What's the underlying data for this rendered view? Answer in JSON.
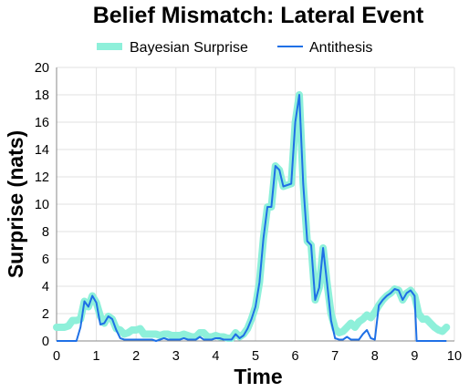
{
  "chart_data": {
    "type": "line",
    "title": "Belief Mismatch: Lateral Event",
    "xlabel": "Time",
    "ylabel": "Surprise (nats)",
    "xlim": [
      0,
      10
    ],
    "ylim": [
      0,
      20
    ],
    "x_ticks": [
      0,
      1,
      2,
      3,
      4,
      5,
      6,
      7,
      8,
      9,
      10
    ],
    "y_ticks": [
      0,
      2,
      4,
      6,
      8,
      10,
      12,
      14,
      16,
      18,
      20
    ],
    "grid": true,
    "legend_position": "top",
    "series": [
      {
        "name": "Bayesian Surprise",
        "color": "#8ef0da",
        "style": "thick-band",
        "points": [
          [
            0,
            1.0
          ],
          [
            0.1,
            1.0
          ],
          [
            0.2,
            1.0
          ],
          [
            0.3,
            1.1
          ],
          [
            0.4,
            1.5
          ],
          [
            0.5,
            1.5
          ],
          [
            0.6,
            1.6
          ],
          [
            0.7,
            2.9
          ],
          [
            0.8,
            2.5
          ],
          [
            0.9,
            3.3
          ],
          [
            1.0,
            2.8
          ],
          [
            1.1,
            1.8
          ],
          [
            1.2,
            1.3
          ],
          [
            1.3,
            1.8
          ],
          [
            1.4,
            1.6
          ],
          [
            1.5,
            0.9
          ],
          [
            1.6,
            0.8
          ],
          [
            1.7,
            0.5
          ],
          [
            1.8,
            0.6
          ],
          [
            1.9,
            0.8
          ],
          [
            2.0,
            0.8
          ],
          [
            2.1,
            0.9
          ],
          [
            2.2,
            0.5
          ],
          [
            2.3,
            0.5
          ],
          [
            2.4,
            0.5
          ],
          [
            2.5,
            0.5
          ],
          [
            2.6,
            0.4
          ],
          [
            2.7,
            0.5
          ],
          [
            2.8,
            0.5
          ],
          [
            2.9,
            0.4
          ],
          [
            3.0,
            0.4
          ],
          [
            3.1,
            0.4
          ],
          [
            3.2,
            0.5
          ],
          [
            3.3,
            0.4
          ],
          [
            3.4,
            0.3
          ],
          [
            3.5,
            0.3
          ],
          [
            3.6,
            0.6
          ],
          [
            3.7,
            0.6
          ],
          [
            3.8,
            0.3
          ],
          [
            3.9,
            0.3
          ],
          [
            4.0,
            0.4
          ],
          [
            4.1,
            0.3
          ],
          [
            4.2,
            0.3
          ],
          [
            4.3,
            0.2
          ],
          [
            4.4,
            0.2
          ],
          [
            4.5,
            0.6
          ],
          [
            4.6,
            0.3
          ],
          [
            4.7,
            0.5
          ],
          [
            4.8,
            0.9
          ],
          [
            4.9,
            1.6
          ],
          [
            5.0,
            2.5
          ],
          [
            5.1,
            4.3
          ],
          [
            5.2,
            7.5
          ],
          [
            5.3,
            9.8
          ],
          [
            5.4,
            9.8
          ],
          [
            5.5,
            12.8
          ],
          [
            5.6,
            12.5
          ],
          [
            5.7,
            11.3
          ],
          [
            5.8,
            11.4
          ],
          [
            5.9,
            11.5
          ],
          [
            6.0,
            16.0
          ],
          [
            6.1,
            18.0
          ],
          [
            6.2,
            11.5
          ],
          [
            6.3,
            7.3
          ],
          [
            6.4,
            7.0
          ],
          [
            6.5,
            3.0
          ],
          [
            6.6,
            3.9
          ],
          [
            6.7,
            6.8
          ],
          [
            6.8,
            4.2
          ],
          [
            6.9,
            2.0
          ],
          [
            7.0,
            0.9
          ],
          [
            7.1,
            0.6
          ],
          [
            7.2,
            0.7
          ],
          [
            7.3,
            1.0
          ],
          [
            7.4,
            1.3
          ],
          [
            7.5,
            1.0
          ],
          [
            7.6,
            1.4
          ],
          [
            7.7,
            1.6
          ],
          [
            7.8,
            1.9
          ],
          [
            7.9,
            1.7
          ],
          [
            8.0,
            2.1
          ],
          [
            8.1,
            2.6
          ],
          [
            8.2,
            3.0
          ],
          [
            8.3,
            3.3
          ],
          [
            8.4,
            3.5
          ],
          [
            8.5,
            3.8
          ],
          [
            8.6,
            3.7
          ],
          [
            8.7,
            3.0
          ],
          [
            8.8,
            3.5
          ],
          [
            8.9,
            3.7
          ],
          [
            9.0,
            3.3
          ],
          [
            9.1,
            2.0
          ],
          [
            9.2,
            1.6
          ],
          [
            9.3,
            1.6
          ],
          [
            9.4,
            1.3
          ],
          [
            9.5,
            1.0
          ],
          [
            9.6,
            0.8
          ],
          [
            9.7,
            0.7
          ],
          [
            9.8,
            1.0
          ]
        ]
      },
      {
        "name": "Antithesis",
        "color": "#1f70e6",
        "style": "line",
        "points": [
          [
            0,
            0
          ],
          [
            0.1,
            0
          ],
          [
            0.2,
            0
          ],
          [
            0.3,
            0
          ],
          [
            0.4,
            0
          ],
          [
            0.5,
            0
          ],
          [
            0.6,
            1.0
          ],
          [
            0.7,
            2.9
          ],
          [
            0.8,
            2.5
          ],
          [
            0.9,
            3.3
          ],
          [
            1.0,
            2.8
          ],
          [
            1.1,
            1.2
          ],
          [
            1.2,
            1.3
          ],
          [
            1.3,
            1.8
          ],
          [
            1.4,
            1.6
          ],
          [
            1.5,
            0.8
          ],
          [
            1.6,
            0.2
          ],
          [
            1.7,
            0.1
          ],
          [
            1.8,
            0.1
          ],
          [
            1.9,
            0.1
          ],
          [
            2.0,
            0.1
          ],
          [
            2.1,
            0.1
          ],
          [
            2.2,
            0.1
          ],
          [
            2.3,
            0.1
          ],
          [
            2.4,
            0.1
          ],
          [
            2.5,
            0
          ],
          [
            2.6,
            0.1
          ],
          [
            2.7,
            0.2
          ],
          [
            2.8,
            0.1
          ],
          [
            2.9,
            0.1
          ],
          [
            3.0,
            0.1
          ],
          [
            3.1,
            0.1
          ],
          [
            3.2,
            0.2
          ],
          [
            3.3,
            0.1
          ],
          [
            3.4,
            0.1
          ],
          [
            3.5,
            0.1
          ],
          [
            3.6,
            0.3
          ],
          [
            3.7,
            0.1
          ],
          [
            3.8,
            0.1
          ],
          [
            3.9,
            0.1
          ],
          [
            4.0,
            0.2
          ],
          [
            4.1,
            0.2
          ],
          [
            4.2,
            0.1
          ],
          [
            4.3,
            0.1
          ],
          [
            4.4,
            0.1
          ],
          [
            4.5,
            0.5
          ],
          [
            4.6,
            0.2
          ],
          [
            4.7,
            0.4
          ],
          [
            4.8,
            0.9
          ],
          [
            4.9,
            1.6
          ],
          [
            5.0,
            2.5
          ],
          [
            5.1,
            4.3
          ],
          [
            5.2,
            7.5
          ],
          [
            5.3,
            9.8
          ],
          [
            5.4,
            9.8
          ],
          [
            5.5,
            12.8
          ],
          [
            5.6,
            12.5
          ],
          [
            5.7,
            11.3
          ],
          [
            5.8,
            11.4
          ],
          [
            5.9,
            11.5
          ],
          [
            6.0,
            16.0
          ],
          [
            6.1,
            18.0
          ],
          [
            6.2,
            11.5
          ],
          [
            6.3,
            7.3
          ],
          [
            6.4,
            7.0
          ],
          [
            6.5,
            3.0
          ],
          [
            6.6,
            3.9
          ],
          [
            6.7,
            6.8
          ],
          [
            6.8,
            4.2
          ],
          [
            6.9,
            1.5
          ],
          [
            7.0,
            0.2
          ],
          [
            7.1,
            0.1
          ],
          [
            7.2,
            0.1
          ],
          [
            7.3,
            0.3
          ],
          [
            7.4,
            0.1
          ],
          [
            7.5,
            0.1
          ],
          [
            7.6,
            0.1
          ],
          [
            7.7,
            0.5
          ],
          [
            7.8,
            0.8
          ],
          [
            7.9,
            0.2
          ],
          [
            8.0,
            0.1
          ],
          [
            8.1,
            2.6
          ],
          [
            8.2,
            3.0
          ],
          [
            8.3,
            3.3
          ],
          [
            8.4,
            3.5
          ],
          [
            8.5,
            3.8
          ],
          [
            8.6,
            3.7
          ],
          [
            8.7,
            3.0
          ],
          [
            8.8,
            3.5
          ],
          [
            8.9,
            3.7
          ],
          [
            9.0,
            3.3
          ],
          [
            9.05,
            0
          ],
          [
            9.2,
            0
          ],
          [
            9.4,
            0
          ],
          [
            9.6,
            0
          ],
          [
            9.8,
            0
          ]
        ]
      }
    ]
  }
}
